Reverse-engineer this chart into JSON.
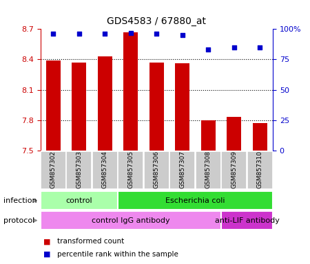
{
  "title": "GDS4583 / 67880_at",
  "samples": [
    "GSM857302",
    "GSM857303",
    "GSM857304",
    "GSM857305",
    "GSM857306",
    "GSM857307",
    "GSM857308",
    "GSM857309",
    "GSM857310"
  ],
  "transformed_count": [
    8.39,
    8.37,
    8.43,
    8.67,
    8.37,
    8.36,
    7.8,
    7.83,
    7.77
  ],
  "percentile_rank": [
    96,
    96,
    96,
    97,
    96,
    95,
    83,
    85,
    85
  ],
  "ylim_left": [
    7.5,
    8.7
  ],
  "ylim_right": [
    0,
    100
  ],
  "yticks_left": [
    7.5,
    7.8,
    8.1,
    8.4,
    8.7
  ],
  "yticks_right": [
    0,
    25,
    50,
    75,
    100
  ],
  "ytick_labels_left": [
    "7.5",
    "7.8",
    "8.1",
    "8.4",
    "8.7"
  ],
  "ytick_labels_right": [
    "0",
    "25",
    "50",
    "75",
    "100%"
  ],
  "bar_color": "#cc0000",
  "dot_color": "#0000cc",
  "grid_lines": [
    7.8,
    8.1,
    8.4
  ],
  "infection_groups": [
    {
      "label": "control",
      "start": 0,
      "end": 3,
      "color": "#aaffaa"
    },
    {
      "label": "Escherichia coli",
      "start": 3,
      "end": 9,
      "color": "#33dd33"
    }
  ],
  "protocol_groups": [
    {
      "label": "control IgG antibody",
      "start": 0,
      "end": 7,
      "color": "#ee88ee"
    },
    {
      "label": "anti-LIF antibody",
      "start": 7,
      "end": 9,
      "color": "#cc33cc"
    }
  ],
  "legend_items": [
    {
      "color": "#cc0000",
      "label": "transformed count"
    },
    {
      "color": "#0000cc",
      "label": "percentile rank within the sample"
    }
  ],
  "left_tick_color": "#cc0000",
  "right_tick_color": "#0000cc",
  "infection_label": "infection",
  "protocol_label": "protocol",
  "sample_box_color": "#cccccc",
  "arrow_color": "#888888",
  "bg_color": "#ffffff"
}
